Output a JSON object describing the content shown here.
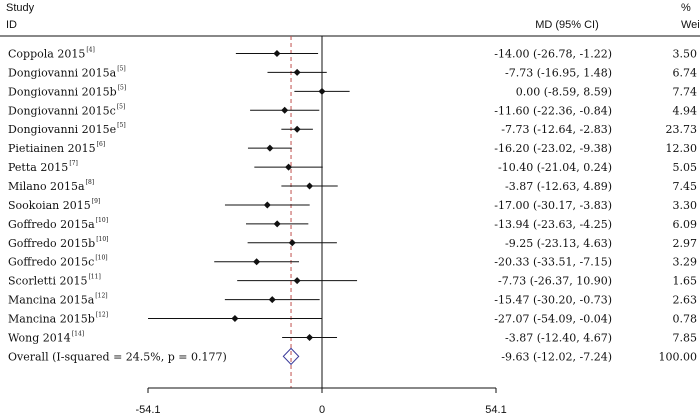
{
  "chart_data": {
    "type": "forest",
    "headers": {
      "study": "Study",
      "id": "ID",
      "effect": "MD (95% CI)",
      "weight_pct": "%",
      "weight": "Weight"
    },
    "x_axis": {
      "ticks": [
        -54.1,
        0,
        54.1
      ],
      "tick_labels": [
        "-54.1",
        "0",
        "54.1"
      ],
      "xlim": [
        -54.1,
        54.1
      ]
    },
    "null_line": 0,
    "summary_line": -9.63,
    "studies": [
      {
        "name": "Coppola 2015",
        "ref": "[4]",
        "md": -14.0,
        "lo": -26.78,
        "hi": -1.22,
        "ci_text": "-14.00 (-26.78, -1.22)",
        "weight": "3.50"
      },
      {
        "name": "Dongiovanni 2015a",
        "ref": "[5]",
        "md": -7.73,
        "lo": -16.95,
        "hi": 1.48,
        "ci_text": "-7.73 (-16.95, 1.48)",
        "weight": "6.74"
      },
      {
        "name": "Dongiovanni 2015b",
        "ref": "[5]",
        "md": 0.0,
        "lo": -8.59,
        "hi": 8.59,
        "ci_text": "0.00 (-8.59, 8.59)",
        "weight": "7.74"
      },
      {
        "name": "Dongiovanni 2015c",
        "ref": "[5]",
        "md": -11.6,
        "lo": -22.36,
        "hi": -0.84,
        "ci_text": "-11.60 (-22.36, -0.84)",
        "weight": "4.94"
      },
      {
        "name": "Dongiovanni 2015e",
        "ref": "[5]",
        "md": -7.73,
        "lo": -12.64,
        "hi": -2.83,
        "ci_text": "-7.73 (-12.64, -2.83)",
        "weight": "23.73"
      },
      {
        "name": "Pietiainen 2015",
        "ref": "[6]",
        "md": -16.2,
        "lo": -23.02,
        "hi": -9.38,
        "ci_text": "-16.20 (-23.02, -9.38)",
        "weight": "12.30"
      },
      {
        "name": "Petta 2015",
        "ref": "[7]",
        "md": -10.4,
        "lo": -21.04,
        "hi": 0.24,
        "ci_text": "-10.40 (-21.04, 0.24)",
        "weight": "5.05"
      },
      {
        "name": "Milano 2015a",
        "ref": "[8]",
        "md": -3.87,
        "lo": -12.63,
        "hi": 4.89,
        "ci_text": "-3.87 (-12.63, 4.89)",
        "weight": "7.45"
      },
      {
        "name": "Sookoian 2015",
        "ref": "[9]",
        "md": -17.0,
        "lo": -30.17,
        "hi": -3.83,
        "ci_text": "-17.00 (-30.17, -3.83)",
        "weight": "3.30"
      },
      {
        "name": "Goffredo 2015a",
        "ref": "[10]",
        "md": -13.94,
        "lo": -23.63,
        "hi": -4.25,
        "ci_text": "-13.94 (-23.63, -4.25)",
        "weight": "6.09"
      },
      {
        "name": "Goffredo 2015b",
        "ref": "[10]",
        "md": -9.25,
        "lo": -23.13,
        "hi": 4.63,
        "ci_text": "-9.25 (-23.13, 4.63)",
        "weight": "2.97"
      },
      {
        "name": "Goffredo  2015c",
        "ref": "[10]",
        "md": -20.33,
        "lo": -33.51,
        "hi": -7.15,
        "ci_text": "-20.33 (-33.51, -7.15)",
        "weight": "3.29"
      },
      {
        "name": "Scorletti 2015",
        "ref": "[11]",
        "md": -7.73,
        "lo": -26.37,
        "hi": 10.9,
        "ci_text": "-7.73 (-26.37, 10.90)",
        "weight": "1.65"
      },
      {
        "name": "Mancina 2015a",
        "ref": "[12]",
        "md": -15.47,
        "lo": -30.2,
        "hi": -0.73,
        "ci_text": "-15.47 (-30.20, -0.73)",
        "weight": "2.63"
      },
      {
        "name": "Mancina 2015b",
        "ref": "[12]",
        "md": -27.07,
        "lo": -54.09,
        "hi": -0.04,
        "ci_text": "-27.07 (-54.09, -0.04)",
        "weight": "0.78"
      },
      {
        "name": "Wong 2014",
        "ref": "[14]",
        "md": -3.87,
        "lo": -12.4,
        "hi": 4.67,
        "ci_text": "-3.87 (-12.40, 4.67)",
        "weight": "7.85"
      }
    ],
    "overall": {
      "label": "Overall  (I-squared = 24.5%, p = 0.177)",
      "md": -9.63,
      "lo": -12.02,
      "hi": -7.24,
      "ci_text": "-9.63 (-12.02, -7.24)",
      "weight": "100.00"
    },
    "colors": {
      "text": "#111111",
      "line": "#111111",
      "summary_line": "#c0504d",
      "diamond": "#3b3b9a"
    }
  }
}
